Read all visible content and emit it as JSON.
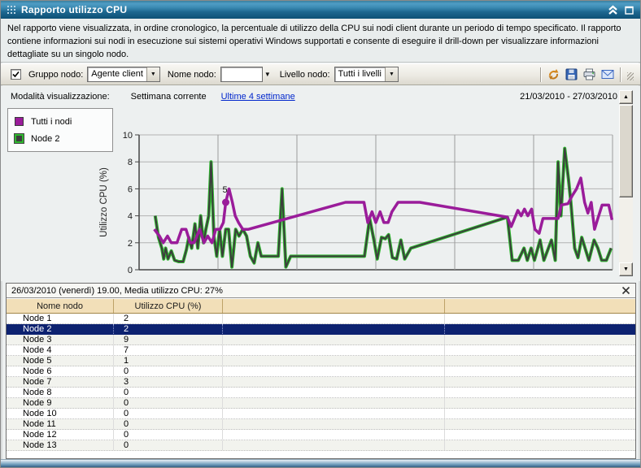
{
  "window": {
    "title": "Rapporto utilizzo CPU"
  },
  "description": "Nel rapporto viene visualizzata, in ordine cronologico, la percentuale di utilizzo della CPU sui nodi client durante un periodo di tempo specificato. Il rapporto contiene informazioni sui nodi in esecuzione sui sistemi operativi Windows supportati e consente di eseguire il drill-down per visualizzare informazioni dettagliate su un singolo nodo.",
  "icons": {
    "dropdown_arrow": "▼",
    "scroll_up": "▲",
    "scroll_down": "▼"
  },
  "toolbar": {
    "group_checkbox_checked": true,
    "group_label": "Gruppo nodo:",
    "group_value": "Agente client",
    "node_name_label": "Nome nodo:",
    "node_name_value": "",
    "node_level_label": "Livello nodo:",
    "node_level_value": "Tutti i livelli"
  },
  "view_mode": {
    "label": "Modalità visualizzazione:",
    "current": "Settimana corrente",
    "link": "Ultime 4 settimane",
    "date_range": "21/03/2010 - 27/03/2010"
  },
  "chart_data": {
    "type": "line",
    "title": "",
    "xlabel": "",
    "ylabel": "Utilizzo CPU (%)",
    "ylim": [
      0,
      10
    ],
    "yticks": [
      0,
      2,
      4,
      6,
      8,
      10
    ],
    "x_axis": "percent of visible week 21/03/2010 - 27/03/2010",
    "grid": true,
    "vertical_divisions": 6,
    "legend_position": "top-left",
    "legend": [
      {
        "name": "Tutti i nodi",
        "color": "#9a1c9a"
      },
      {
        "name": "Node 2",
        "color": "#3d3d3d",
        "edge": "#2eb82e"
      }
    ],
    "point_label": {
      "x": 18.3,
      "y": 5,
      "text": "5"
    },
    "series": [
      {
        "name": "Tutti i nodi",
        "color": "#9a1c9a",
        "points": [
          [
            3.2,
            3
          ],
          [
            4.3,
            2.5
          ],
          [
            5.1,
            2
          ],
          [
            6,
            2.5
          ],
          [
            6.8,
            2
          ],
          [
            8,
            2
          ],
          [
            9,
            3
          ],
          [
            9.9,
            3
          ],
          [
            10.8,
            2
          ],
          [
            11.6,
            2
          ],
          [
            12.8,
            3
          ],
          [
            13.7,
            2
          ],
          [
            14.5,
            2.5
          ],
          [
            15.4,
            2
          ],
          [
            16.2,
            3
          ],
          [
            17.1,
            3
          ],
          [
            17.8,
            3.5
          ],
          [
            18.3,
            5
          ],
          [
            19,
            6
          ],
          [
            19.7,
            5
          ],
          [
            20.3,
            4
          ],
          [
            21,
            3.5
          ],
          [
            21.9,
            3
          ],
          [
            23.1,
            3
          ],
          [
            43.6,
            5
          ],
          [
            47.5,
            5
          ],
          [
            48.3,
            3.5
          ],
          [
            49.2,
            4.3
          ],
          [
            50,
            3.5
          ],
          [
            50.9,
            4.3
          ],
          [
            51.7,
            3.5
          ],
          [
            52.6,
            3.5
          ],
          [
            53.4,
            4.3
          ],
          [
            54.7,
            5
          ],
          [
            59.3,
            5
          ],
          [
            77.8,
            3.9
          ],
          [
            78.6,
            3.2
          ],
          [
            79.3,
            3.8
          ],
          [
            80,
            4.4
          ],
          [
            80.7,
            4
          ],
          [
            81.4,
            4.5
          ],
          [
            82.1,
            4
          ],
          [
            82.9,
            4.5
          ],
          [
            83.6,
            3
          ],
          [
            84.5,
            2.7
          ],
          [
            85.3,
            3.8
          ],
          [
            88.5,
            3.8
          ],
          [
            89.2,
            4.8
          ],
          [
            90.6,
            4.9
          ],
          [
            91.5,
            5.5
          ],
          [
            92.4,
            6
          ],
          [
            93.3,
            6.8
          ],
          [
            94.1,
            5
          ],
          [
            94.8,
            4.2
          ],
          [
            95.5,
            5
          ],
          [
            96.2,
            3
          ],
          [
            96.9,
            3.8
          ],
          [
            97.8,
            4.8
          ],
          [
            99.2,
            4.8
          ],
          [
            99.9,
            3.7
          ]
        ]
      },
      {
        "name": "Node 2",
        "color": "#3d3d3d",
        "halo": "#2eb82e",
        "points": [
          [
            3.4,
            4
          ],
          [
            4.1,
            2.4
          ],
          [
            4.8,
            1.6
          ],
          [
            5.2,
            0.8
          ],
          [
            5.6,
            1.6
          ],
          [
            6.1,
            0.8
          ],
          [
            6.8,
            1.4
          ],
          [
            7.5,
            0.7
          ],
          [
            8.4,
            0.6
          ],
          [
            9.3,
            0.6
          ],
          [
            10,
            1.5
          ],
          [
            10.5,
            2.4
          ],
          [
            11.1,
            1.6
          ],
          [
            11.8,
            3.4
          ],
          [
            12.4,
            1.6
          ],
          [
            13,
            4
          ],
          [
            13.6,
            2
          ],
          [
            14.1,
            3
          ],
          [
            14.7,
            4
          ],
          [
            15.2,
            8
          ],
          [
            15.8,
            2.5
          ],
          [
            16.4,
            1
          ],
          [
            17,
            3
          ],
          [
            17.6,
            1
          ],
          [
            18.3,
            3
          ],
          [
            18.9,
            3
          ],
          [
            19.6,
            0.2
          ],
          [
            20.4,
            3
          ],
          [
            21.1,
            2.5
          ],
          [
            21.9,
            3
          ],
          [
            22.7,
            2.5
          ],
          [
            23.5,
            1
          ],
          [
            24.3,
            0.5
          ],
          [
            25.1,
            2
          ],
          [
            25.8,
            1
          ],
          [
            27,
            1
          ],
          [
            29.4,
            1
          ],
          [
            30.2,
            6
          ],
          [
            31,
            0.2
          ],
          [
            32,
            1
          ],
          [
            47.6,
            1
          ],
          [
            48.7,
            3.8
          ],
          [
            49.6,
            2.2
          ],
          [
            50.3,
            0.8
          ],
          [
            51.2,
            2.4
          ],
          [
            52,
            2.3
          ],
          [
            52.7,
            2.6
          ],
          [
            53.5,
            0.9
          ],
          [
            54.4,
            0.8
          ],
          [
            55.3,
            2.2
          ],
          [
            56.1,
            0.8
          ],
          [
            57.4,
            1.6
          ],
          [
            77.8,
            3.9
          ],
          [
            78.8,
            0.7
          ],
          [
            80.1,
            0.7
          ],
          [
            81.3,
            1.6
          ],
          [
            82,
            0.7
          ],
          [
            82.8,
            1.6
          ],
          [
            83.5,
            0.7
          ],
          [
            84.7,
            2.2
          ],
          [
            85.5,
            0.7
          ],
          [
            87.1,
            2.2
          ],
          [
            87.9,
            0.7
          ],
          [
            88.5,
            8
          ],
          [
            89.1,
            4
          ],
          [
            89.9,
            9
          ],
          [
            90.7,
            6.7
          ],
          [
            91.2,
            5
          ],
          [
            92,
            1.6
          ],
          [
            92.7,
            0.9
          ],
          [
            93.5,
            2.4
          ],
          [
            94.2,
            1.6
          ],
          [
            95,
            0.7
          ],
          [
            96.1,
            2.2
          ],
          [
            96.9,
            1.6
          ],
          [
            97.7,
            0.7
          ],
          [
            98.7,
            0.7
          ],
          [
            99.7,
            1.6
          ]
        ]
      }
    ]
  },
  "detail_panel": {
    "title": "26/03/2010 (venerdì) 19.00, Media utilizzo CPU: 27%",
    "columns": [
      "Nome nodo",
      "Utilizzo CPU (%)"
    ],
    "selected_index": 1,
    "rows": [
      [
        "Node 1",
        "2"
      ],
      [
        "Node 2",
        "2"
      ],
      [
        "Node 3",
        "9"
      ],
      [
        "Node 4",
        "7"
      ],
      [
        "Node 5",
        "1"
      ],
      [
        "Node 6",
        "0"
      ],
      [
        "Node 7",
        "3"
      ],
      [
        "Node 8",
        "0"
      ],
      [
        "Node 9",
        "0"
      ],
      [
        "Node 10",
        "0"
      ],
      [
        "Node 11",
        "0"
      ],
      [
        "Node 12",
        "0"
      ],
      [
        "Node 13",
        "0"
      ]
    ]
  }
}
